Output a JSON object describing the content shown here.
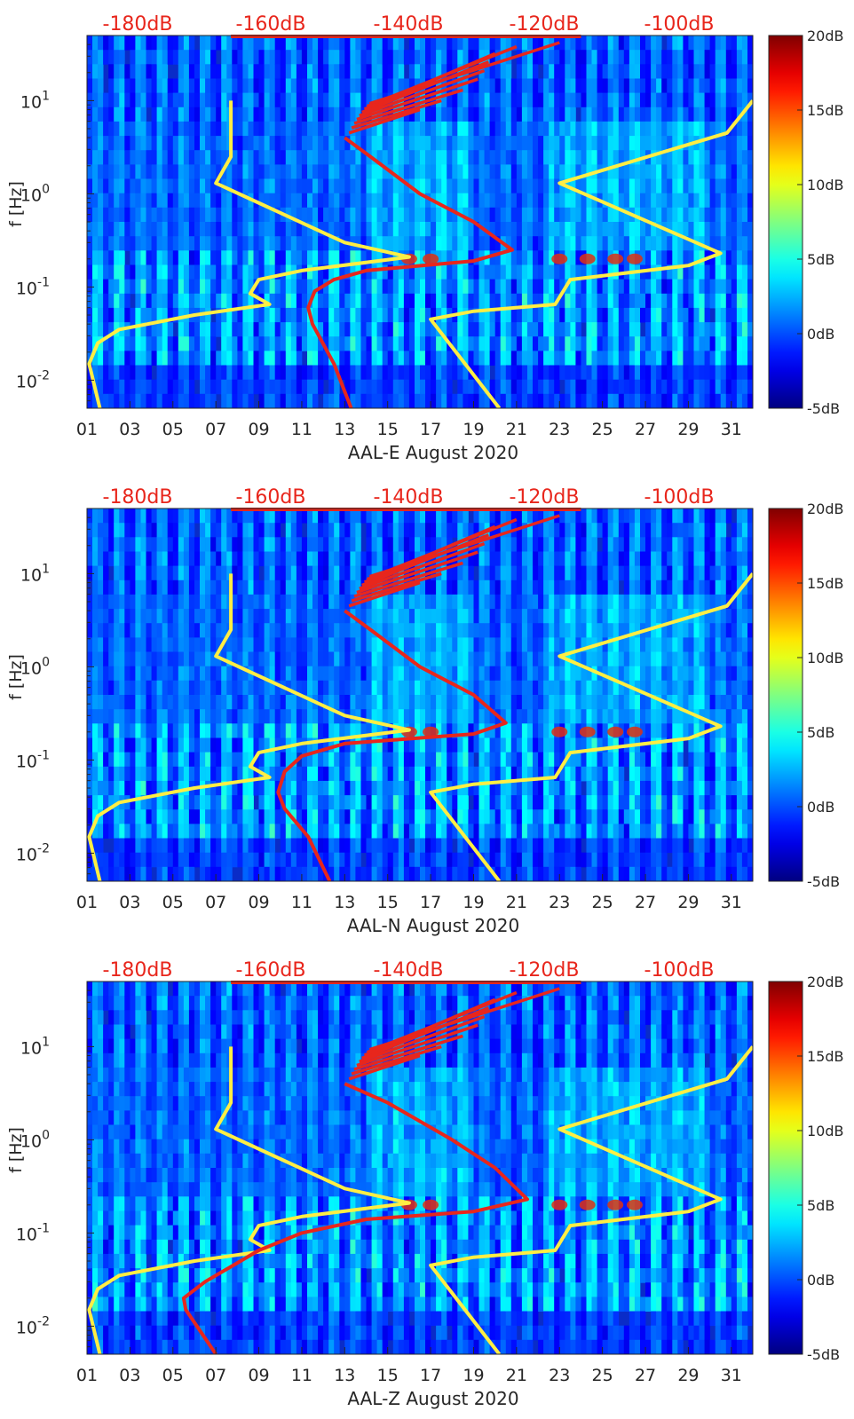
{
  "chart_data": [
    {
      "type": "heatmap",
      "xlabel": "AAL-E August 2020",
      "ylabel": "f [Hz]",
      "x_ticks": [
        "01",
        "03",
        "05",
        "07",
        "09",
        "11",
        "13",
        "15",
        "17",
        "19",
        "21",
        "23",
        "25",
        "27",
        "29",
        "31"
      ],
      "y_ticks": [
        {
          "base": "10",
          "exp": "-2"
        },
        {
          "base": "10",
          "exp": "-1"
        },
        {
          "base": "10",
          "exp": "0"
        },
        {
          "base": "10",
          "exp": "1"
        }
      ],
      "y_scale": "log",
      "ylim": [
        0.005,
        50
      ],
      "xlim": [
        1,
        32
      ],
      "top_axis_labels": [
        "-180dB",
        "-160dB",
        "-140dB",
        "-120dB",
        "-100dB"
      ],
      "colorbar": {
        "labels": [
          "20dB",
          "15dB",
          "10dB",
          "5dB",
          "0dB",
          "-5dB"
        ],
        "range": [
          -5,
          20
        ]
      },
      "series": [
        {
          "color": "#ffee44",
          "points": [
            [
              7.7,
              10
            ],
            [
              7.7,
              2.5
            ],
            [
              7.0,
              1.3
            ],
            [
              13.0,
              0.3
            ],
            [
              16.0,
              0.21
            ],
            [
              11.0,
              0.15
            ],
            [
              9.0,
              0.12
            ],
            [
              8.6,
              0.085
            ],
            [
              9.5,
              0.065
            ],
            [
              6.0,
              0.05
            ],
            [
              2.5,
              0.035
            ],
            [
              1.5,
              0.025
            ],
            [
              1.1,
              0.015
            ],
            [
              1.6,
              0.005
            ]
          ]
        },
        {
          "color": "#ffee44",
          "points": [
            [
              32,
              10
            ],
            [
              30.8,
              4.5
            ],
            [
              23.0,
              1.3
            ],
            [
              30.5,
              0.23
            ],
            [
              29.0,
              0.17
            ],
            [
              23.5,
              0.12
            ],
            [
              22.8,
              0.065
            ],
            [
              19.0,
              0.055
            ],
            [
              17.0,
              0.045
            ],
            [
              20.2,
              0.005
            ]
          ]
        },
        {
          "color": "#e8261c",
          "points": [
            [
              13.0,
              4.0
            ],
            [
              14.2,
              2.5
            ],
            [
              16.5,
              1.0
            ],
            [
              19.0,
              0.5
            ],
            [
              20.8,
              0.25
            ],
            [
              19.0,
              0.19
            ],
            [
              14.0,
              0.15
            ],
            [
              12.5,
              0.12
            ],
            [
              11.6,
              0.09
            ],
            [
              11.3,
              0.06
            ],
            [
              11.5,
              0.04
            ],
            [
              12.5,
              0.015
            ],
            [
              13.3,
              0.005
            ]
          ]
        }
      ]
    },
    {
      "type": "heatmap",
      "xlabel": "AAL-N August 2020",
      "ylabel": "f [Hz]",
      "x_ticks": [
        "01",
        "03",
        "05",
        "07",
        "09",
        "11",
        "13",
        "15",
        "17",
        "19",
        "21",
        "23",
        "25",
        "27",
        "29",
        "31"
      ],
      "y_ticks": [
        {
          "base": "10",
          "exp": "-2"
        },
        {
          "base": "10",
          "exp": "-1"
        },
        {
          "base": "10",
          "exp": "0"
        },
        {
          "base": "10",
          "exp": "1"
        }
      ],
      "y_scale": "log",
      "ylim": [
        0.005,
        50
      ],
      "xlim": [
        1,
        32
      ],
      "top_axis_labels": [
        "-180dB",
        "-160dB",
        "-140dB",
        "-120dB",
        "-100dB"
      ],
      "colorbar": {
        "labels": [
          "20dB",
          "15dB",
          "10dB",
          "5dB",
          "0dB",
          "-5dB"
        ],
        "range": [
          -5,
          20
        ]
      },
      "series": [
        {
          "color": "#ffee44",
          "points": [
            [
              7.7,
              10
            ],
            [
              7.7,
              2.5
            ],
            [
              7.0,
              1.3
            ],
            [
              13.0,
              0.3
            ],
            [
              16.0,
              0.21
            ],
            [
              11.0,
              0.15
            ],
            [
              9.0,
              0.12
            ],
            [
              8.6,
              0.085
            ],
            [
              9.5,
              0.065
            ],
            [
              6.0,
              0.05
            ],
            [
              2.5,
              0.035
            ],
            [
              1.5,
              0.025
            ],
            [
              1.1,
              0.015
            ],
            [
              1.6,
              0.005
            ]
          ]
        },
        {
          "color": "#ffee44",
          "points": [
            [
              32,
              10
            ],
            [
              30.8,
              4.5
            ],
            [
              23.0,
              1.3
            ],
            [
              30.5,
              0.23
            ],
            [
              29.0,
              0.17
            ],
            [
              23.5,
              0.12
            ],
            [
              22.8,
              0.065
            ],
            [
              19.0,
              0.055
            ],
            [
              17.0,
              0.045
            ],
            [
              20.2,
              0.005
            ]
          ]
        },
        {
          "color": "#e8261c",
          "points": [
            [
              13.0,
              4.0
            ],
            [
              14.2,
              2.5
            ],
            [
              16.5,
              1.0
            ],
            [
              19.0,
              0.5
            ],
            [
              20.5,
              0.25
            ],
            [
              19.0,
              0.19
            ],
            [
              13.0,
              0.15
            ],
            [
              11.0,
              0.11
            ],
            [
              10.2,
              0.075
            ],
            [
              9.9,
              0.045
            ],
            [
              10.2,
              0.03
            ],
            [
              11.3,
              0.015
            ],
            [
              12.3,
              0.005
            ]
          ]
        }
      ]
    },
    {
      "type": "heatmap",
      "xlabel": "AAL-Z August 2020",
      "ylabel": "f [Hz]",
      "x_ticks": [
        "01",
        "03",
        "05",
        "07",
        "09",
        "11",
        "13",
        "15",
        "17",
        "19",
        "21",
        "23",
        "25",
        "27",
        "29",
        "31"
      ],
      "y_ticks": [
        {
          "base": "10",
          "exp": "-2"
        },
        {
          "base": "10",
          "exp": "-1"
        },
        {
          "base": "10",
          "exp": "0"
        },
        {
          "base": "10",
          "exp": "1"
        }
      ],
      "y_scale": "log",
      "ylim": [
        0.005,
        50
      ],
      "xlim": [
        1,
        32
      ],
      "top_axis_labels": [
        "-180dB",
        "-160dB",
        "-140dB",
        "-120dB",
        "-100dB"
      ],
      "colorbar": {
        "labels": [
          "20dB",
          "15dB",
          "10dB",
          "5dB",
          "0dB",
          "-5dB"
        ],
        "range": [
          -5,
          20
        ]
      },
      "series": [
        {
          "color": "#ffee44",
          "points": [
            [
              7.7,
              10
            ],
            [
              7.7,
              2.5
            ],
            [
              7.0,
              1.3
            ],
            [
              13.0,
              0.3
            ],
            [
              16.0,
              0.21
            ],
            [
              11.0,
              0.15
            ],
            [
              9.0,
              0.12
            ],
            [
              8.6,
              0.085
            ],
            [
              9.5,
              0.065
            ],
            [
              6.0,
              0.05
            ],
            [
              2.5,
              0.035
            ],
            [
              1.5,
              0.025
            ],
            [
              1.1,
              0.015
            ],
            [
              1.6,
              0.005
            ]
          ]
        },
        {
          "color": "#ffee44",
          "points": [
            [
              32,
              10
            ],
            [
              30.8,
              4.5
            ],
            [
              23.0,
              1.3
            ],
            [
              30.5,
              0.23
            ],
            [
              29.0,
              0.17
            ],
            [
              23.5,
              0.12
            ],
            [
              22.8,
              0.065
            ],
            [
              19.0,
              0.055
            ],
            [
              17.0,
              0.045
            ],
            [
              20.2,
              0.005
            ]
          ]
        },
        {
          "color": "#e8261c",
          "points": [
            [
              13.0,
              4.0
            ],
            [
              15.0,
              2.5
            ],
            [
              18.0,
              1.0
            ],
            [
              20.0,
              0.5
            ],
            [
              21.5,
              0.23
            ],
            [
              19.0,
              0.17
            ],
            [
              14.0,
              0.14
            ],
            [
              11.0,
              0.1
            ],
            [
              9.0,
              0.065
            ],
            [
              6.5,
              0.03
            ],
            [
              5.5,
              0.02
            ],
            [
              5.6,
              0.015
            ],
            [
              7.0,
              0.005
            ]
          ]
        }
      ]
    }
  ]
}
